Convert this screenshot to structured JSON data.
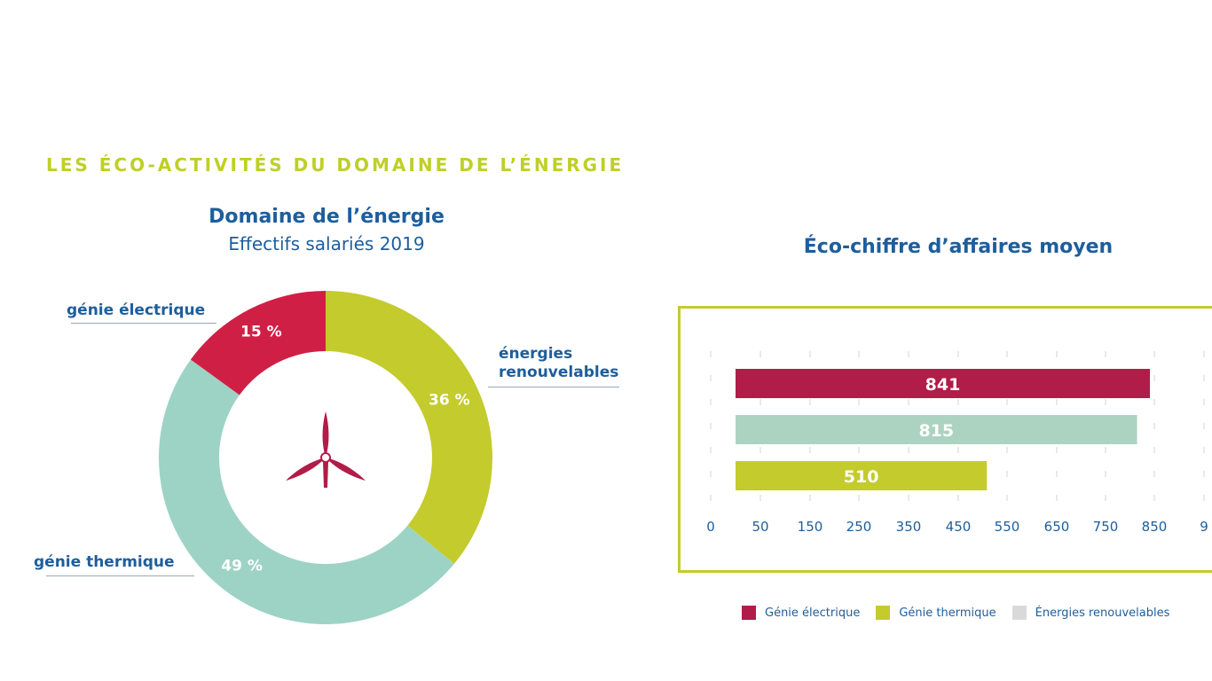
{
  "page": {
    "heading": "LES ÉCO-ACTIVITÉS DU DOMAINE DE L’ÉNERGIE"
  },
  "colors": {
    "heading": "#bfcf28",
    "text_blue": "#1d5e9c",
    "genie_electrique": "#d01f45",
    "energies_renouvelables": "#c4cb2c",
    "genie_thermique": "#9dd3c4",
    "bar_electrique": "#b21c48",
    "bar_thermique": "#c4cb2c",
    "bar_renouvelables": "#acd3c2",
    "legend_renouvelables": "#d9d9d9",
    "turbine": "#b21c48"
  },
  "chart_data": [
    {
      "type": "pie",
      "style": "donut",
      "title": "Domaine de l’énergie",
      "subtitle": "Effectifs salariés 2019",
      "center_icon": "wind-turbine-icon",
      "slices": [
        {
          "label": "génie électrique",
          "value": 15,
          "value_label": "15 %",
          "color": "#d01f45"
        },
        {
          "label": "énergies renouvelables",
          "value": 36,
          "value_label": "36 %",
          "color": "#c4cb2c"
        },
        {
          "label": "génie thermique",
          "value": 49,
          "value_label": "49 %",
          "color": "#9dd3c4"
        }
      ]
    },
    {
      "type": "bar",
      "orientation": "horizontal",
      "title": "Éco-chiffre d’affaires moyen",
      "bars": [
        {
          "value": 841,
          "color": "#b21c48"
        },
        {
          "value": 815,
          "color": "#acd3c2"
        },
        {
          "value": 510,
          "color": "#c4cb2c"
        }
      ],
      "x_ticks": [
        "0",
        "50",
        "150",
        "250",
        "350",
        "450",
        "550",
        "650",
        "750",
        "850",
        "9"
      ],
      "grid": true,
      "legend_position": "bottom",
      "legend": [
        {
          "label": "Génie électrique",
          "color": "#b21c48"
        },
        {
          "label": "Génie thermique",
          "color": "#c4cb2c"
        },
        {
          "label": "Énergies renouvelables",
          "color": "#d9d9d9"
        }
      ]
    }
  ]
}
